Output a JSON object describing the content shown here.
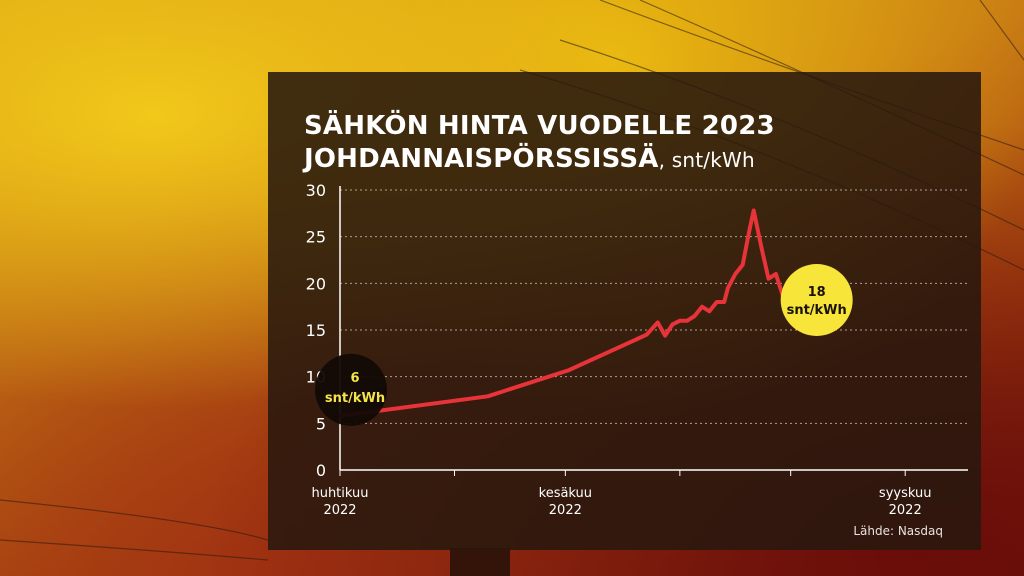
{
  "title": {
    "line1": "SÄHKÖN HINTA VUODELLE 2023",
    "line2": "JOHDANNAISPÖRSSISSÄ",
    "unit": ", snt/kWh"
  },
  "source": "Lähde: Nasdaq",
  "chart_data": {
    "type": "line",
    "ylim": [
      0,
      30
    ],
    "yticks": [
      0,
      5,
      10,
      15,
      20,
      25,
      30
    ],
    "grid": true,
    "series_color": "#e8333a",
    "x_ticks": [
      {
        "x": 0,
        "line1": "huhtikuu",
        "line2": "2022"
      },
      {
        "x": 61,
        "line1": "kesäkuu",
        "line2": "2022"
      },
      {
        "x": 153,
        "line1": "syyskuu",
        "line2": "2022"
      }
    ],
    "points": [
      [
        0,
        5.8
      ],
      [
        40,
        7.9
      ],
      [
        62,
        10.7
      ],
      [
        83,
        14.5
      ],
      [
        86,
        15.8
      ],
      [
        88,
        14.4
      ],
      [
        90,
        15.6
      ],
      [
        92,
        16.0
      ],
      [
        94,
        16.0
      ],
      [
        96,
        16.5
      ],
      [
        98,
        17.5
      ],
      [
        100,
        17.0
      ],
      [
        102,
        18.0
      ],
      [
        104,
        18.0
      ],
      [
        105,
        19.5
      ],
      [
        107,
        21.0
      ],
      [
        109,
        22.0
      ],
      [
        111,
        26.0
      ],
      [
        112,
        27.8
      ],
      [
        114,
        24.0
      ],
      [
        116,
        20.5
      ],
      [
        118,
        21.0
      ],
      [
        120,
        18.5
      ],
      [
        122,
        18.0
      ]
    ],
    "start_label": {
      "value": "6",
      "unit": "snt/kWh"
    },
    "end_label": {
      "value": "18",
      "unit": "snt/kWh"
    }
  }
}
